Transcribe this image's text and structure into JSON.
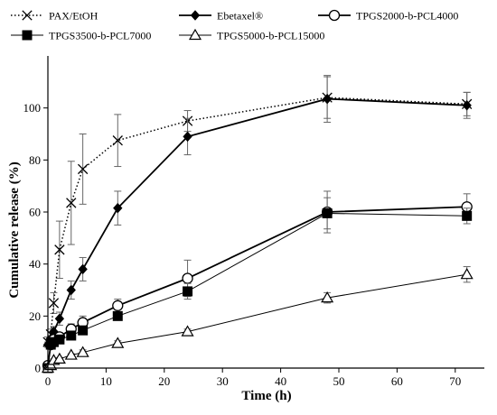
{
  "chart_data": {
    "type": "line",
    "xlabel": "Time (h)",
    "ylabel": "Cumulative release (%)",
    "xlim": [
      0,
      75
    ],
    "ylim": [
      0,
      120
    ],
    "xticks": [
      0,
      10,
      20,
      30,
      40,
      50,
      60,
      70
    ],
    "yticks": [
      0,
      20,
      40,
      60,
      80,
      100
    ],
    "xtick_labels": [
      "0",
      "10",
      "20",
      "30",
      "40",
      "50",
      "60",
      "70"
    ],
    "ytick_labels": [
      "0",
      "20",
      "40",
      "60",
      "80",
      "100"
    ],
    "grid": false,
    "legend_position": "top",
    "series": [
      {
        "name": "PAX/EtOH",
        "marker": "x",
        "line_style": "dotted",
        "line_width": 1.5,
        "x": [
          0,
          0.5,
          1,
          2,
          4,
          6,
          12,
          24,
          48,
          72
        ],
        "y": [
          10,
          13,
          25,
          45.5,
          63.5,
          76.5,
          87.5,
          95,
          104,
          101.5
        ],
        "err": [
          2,
          2,
          4,
          11,
          16,
          13.5,
          10,
          4,
          8,
          4.5
        ]
      },
      {
        "name": "Ebetaxel®",
        "marker": "diamond",
        "line_style": "solid",
        "line_width": 1.8,
        "x": [
          0,
          0.5,
          1,
          2,
          4,
          6,
          12,
          24,
          48,
          72
        ],
        "y": [
          9,
          11,
          14,
          19,
          30,
          38,
          61.5,
          89,
          103.5,
          101
        ],
        "err": [
          1,
          1.5,
          2,
          2.5,
          3.5,
          4.5,
          6.5,
          7,
          9,
          5
        ]
      },
      {
        "name": "TPGS2000-b-PCL4000",
        "marker": "circle-open",
        "line_style": "solid",
        "line_width": 1.8,
        "x": [
          0,
          0.5,
          1,
          2,
          4,
          6,
          12,
          24,
          48,
          72
        ],
        "y": [
          1,
          9,
          11,
          12,
          15,
          17.5,
          24,
          34.5,
          60,
          62
        ],
        "err": [
          0.5,
          1.5,
          1.5,
          1.5,
          2,
          2.5,
          2.5,
          7,
          8,
          5
        ]
      },
      {
        "name": "TPGS3500-b-PCL7000",
        "marker": "square",
        "line_style": "solid",
        "line_width": 1,
        "x": [
          0,
          0.5,
          1,
          2,
          4,
          6,
          12,
          24,
          48,
          72
        ],
        "y": [
          0,
          9,
          10,
          11,
          12.5,
          14.5,
          20,
          29.5,
          59.5,
          58.5
        ],
        "err": [
          0.5,
          1,
          1,
          1,
          1.5,
          1.5,
          1.5,
          3,
          6,
          3
        ]
      },
      {
        "name": "TPGS5000-b-PCL15000",
        "marker": "triangle-open",
        "line_style": "solid",
        "line_width": 1,
        "x": [
          0,
          0.5,
          1,
          2,
          4,
          6,
          12,
          24,
          48,
          72
        ],
        "y": [
          0,
          1,
          3,
          3.5,
          5,
          6,
          9.5,
          14,
          27,
          36
        ],
        "err": [
          0.5,
          0.5,
          0.5,
          0.5,
          0.5,
          1,
          1,
          1,
          2,
          3
        ]
      }
    ]
  }
}
